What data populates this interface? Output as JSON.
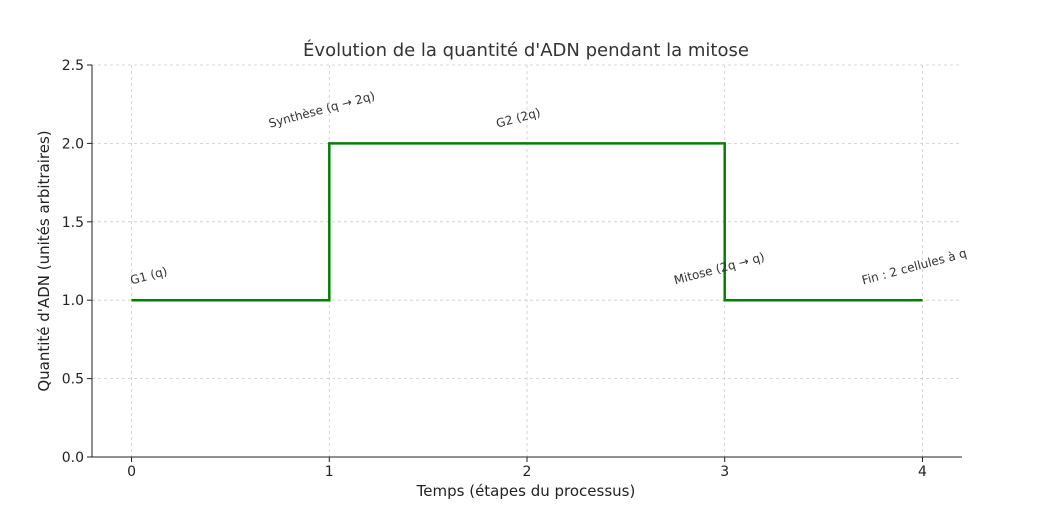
{
  "chart_data": {
    "type": "line",
    "title": "Évolution de la quantité d'ADN pendant la mitose",
    "xlabel": "Temps (étapes du processus)",
    "ylabel": "Quantité d'ADN (unités arbitraires)",
    "x": [
      0,
      1,
      1,
      3,
      3,
      4
    ],
    "series": [
      {
        "values": [
          1.0,
          1.0,
          2.0,
          2.0,
          1.0,
          1.0
        ],
        "color": "#008000"
      }
    ],
    "xticks": [
      "0",
      "1",
      "2",
      "3",
      "4"
    ],
    "yticks": [
      "0.0",
      "0.5",
      "1.0",
      "1.5",
      "2.0",
      "2.5"
    ],
    "xlim": [
      -0.2,
      4.2
    ],
    "ylim": [
      0,
      2.5
    ],
    "grid": true,
    "annotations": [
      {
        "text": "G1 (q)",
        "x": 0,
        "y": 1.1
      },
      {
        "text": "Synthèse (q → 2q)",
        "x": 0.7,
        "y": 2.1
      },
      {
        "text": "G2 (2q)",
        "x": 1.85,
        "y": 2.1
      },
      {
        "text": "Mitose (2q → q)",
        "x": 2.75,
        "y": 1.1
      },
      {
        "text": "Fin : 2 cellules à q",
        "x": 3.7,
        "y": 1.1
      }
    ]
  }
}
